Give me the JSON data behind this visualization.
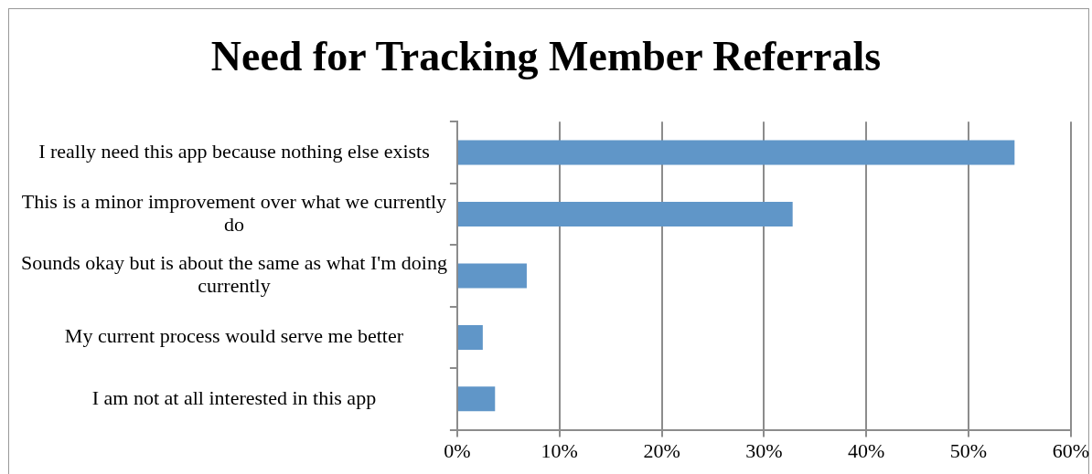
{
  "chart_data": {
    "type": "bar",
    "orientation": "horizontal",
    "title": "Need for Tracking Member Referrals",
    "categories": [
      "I really need this app because nothing else exists",
      "This is a minor improvement over what we currently do",
      "Sounds okay but is about the same as what I'm doing currently",
      "My current process would serve me better",
      "I am not at all interested in this app"
    ],
    "values": [
      54.5,
      32.8,
      6.8,
      2.5,
      3.7
    ],
    "color": "#6096c8",
    "xlim": [
      0,
      60
    ],
    "xticks": [
      {
        "value": 0,
        "label": "0%"
      },
      {
        "value": 10,
        "label": "10%"
      },
      {
        "value": 20,
        "label": "20%"
      },
      {
        "value": 30,
        "label": "30%"
      },
      {
        "value": 40,
        "label": "40%"
      },
      {
        "value": 50,
        "label": "50%"
      },
      {
        "value": 60,
        "label": "60%"
      }
    ],
    "grid": "x",
    "legend": false
  }
}
